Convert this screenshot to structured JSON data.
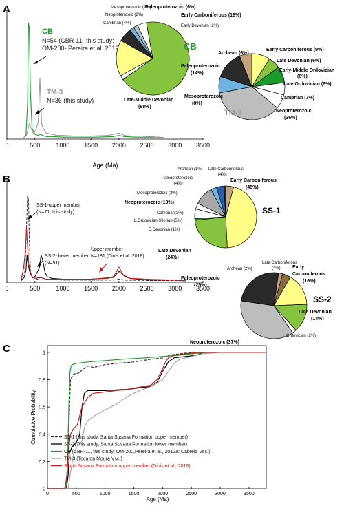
{
  "panel_labels": {
    "A": "A",
    "B": "B",
    "C": "C"
  },
  "chart_data": [
    {
      "panel": "A",
      "type": "line",
      "xlabel": "Age (Ma)",
      "xlim": [
        0,
        3500
      ],
      "ticks": [
        "0",
        "500",
        "1000",
        "1500",
        "2000",
        "2500",
        "3000",
        "3500"
      ],
      "tick_values": [
        0,
        500,
        1000,
        1500,
        2000,
        2500,
        3000,
        3500
      ],
      "series": [
        {
          "name": "CB",
          "color": "#1a9b2c",
          "x": [
            300,
            340,
            370,
            385,
            400,
            420,
            450,
            500,
            560,
            600,
            640,
            700,
            800,
            1000,
            1300,
            1600,
            1900,
            2000,
            2100,
            2300,
            2500,
            2700,
            2800
          ],
          "y": [
            0,
            2,
            30,
            100,
            95,
            40,
            8,
            3,
            2,
            3,
            2,
            1,
            1,
            0.5,
            0.5,
            0.5,
            1,
            2,
            1,
            0.5,
            0.5,
            0.5,
            0
          ]
        },
        {
          "name": "TM-3",
          "color": "#9a9a9a",
          "x": [
            300,
            350,
            400,
            450,
            480,
            520,
            560,
            590,
            620,
            650,
            700,
            800,
            900,
            1000,
            1200,
            1500,
            1800,
            2000,
            2100,
            2200,
            2400,
            2600,
            2750
          ],
          "y": [
            0,
            2,
            12,
            6,
            3,
            7,
            14,
            52,
            12,
            8,
            4,
            3,
            2,
            2,
            1.5,
            1.5,
            2,
            4,
            2,
            1.5,
            1.5,
            1,
            0
          ]
        }
      ],
      "annotations": {
        "cb_title": "CB",
        "cb_note1": "N=54 (CBR-11- this study;",
        "cb_note2": "OM-200- Pereira et al. 2012a)",
        "tm_title": "TM-3",
        "tm_note": "N=36 (this study)"
      }
    },
    {
      "panel": "A",
      "type": "pie",
      "title": "CB",
      "title_color": "#1a9b2c",
      "slices": [
        {
          "label": "Late-Middle Devonian (68%)",
          "value": 68,
          "color": "#86c440"
        },
        {
          "label": "Early Devonian (2%)",
          "value": 2,
          "color": "#ffffff"
        },
        {
          "label": "Early Carboniferous (16%)",
          "value": 16,
          "color": "#ffff88"
        },
        {
          "label": "Paleoproterozoic (6%)",
          "value": 6,
          "color": "#2a2a2a"
        },
        {
          "label": "Mesoproterozoic (2%)",
          "value": 2,
          "color": "#6fb3e0"
        },
        {
          "label": "Neoproterozoic (2%)",
          "value": 2,
          "color": "#bdbdbd"
        },
        {
          "label": "Cambrian (4%)",
          "value": 4,
          "color": "#ffffff"
        }
      ],
      "labels": {
        "meso": "Mesoproterozoic (2%)",
        "neo": "Neoproterozoic (2%)",
        "cambrian": "Cambrian (4%)",
        "paleo": "Paleoproterozoic (6%)",
        "early_carb": "Early Carboniferous (16%)",
        "early_dev": "Early Devonian (2%)",
        "late_mid_dev_1": "Late-Middle Devonian",
        "late_mid_dev_2": "(68%)"
      }
    },
    {
      "panel": "A",
      "type": "pie",
      "title": "TM-3",
      "title_color": "#9a9a9a",
      "slices": [
        {
          "label": "Early Carboniferous (9%)",
          "value": 9,
          "color": "#ffff88"
        },
        {
          "label": "Late Devonian (6%)",
          "value": 6,
          "color": "#86c440"
        },
        {
          "label": "Early-Middle Ordovician (8%)",
          "value": 8,
          "color": "#1a9b2c"
        },
        {
          "label": "Late Ordovician (6%)",
          "value": 6,
          "color": "#ffffff"
        },
        {
          "label": "Cambrian (7%)",
          "value": 7,
          "color": "#ffffff"
        },
        {
          "label": "Neoproterozoic (36%)",
          "value": 36,
          "color": "#bdbdbd"
        },
        {
          "label": "Mesoproterozoic (8%)",
          "value": 8,
          "color": "#6fb3e0"
        },
        {
          "label": "Paleoproterozoic (14%)",
          "value": 14,
          "color": "#2a2a2a"
        },
        {
          "label": "Archean (6%)",
          "value": 6,
          "color": "#c4a27a"
        }
      ],
      "labels": {
        "archean": "Archean (6%)",
        "early_carb": "Early Carboniferous (9%)",
        "late_dev": "Late Devonian (6%)",
        "em_ord_1": "Early-Middle Ordovician",
        "em_ord_2": "(8%)",
        "late_ord": "Late Ordovician (6%)",
        "cambrian": "Cambrian (7%)",
        "neo_1": "Neoproterozoic",
        "neo_2": "(36%)",
        "paleo_1": "Paleoproterozoic",
        "paleo_2": "(14%)",
        "meso_1": "Mesoproterozoic",
        "meso_2": "(8%)"
      }
    },
    {
      "panel": "B",
      "type": "line",
      "xlim": [
        0,
        3500
      ],
      "ticks": [
        "0",
        "500",
        "1000",
        "1500",
        "2000",
        "2500",
        "3000",
        "3500"
      ],
      "tick_values": [
        0,
        500,
        1000,
        1500,
        2000,
        2500,
        3000,
        3500
      ],
      "series": [
        {
          "name": "SS-1-upper member",
          "color": "#333333",
          "style": "dashed",
          "x": [
            250,
            320,
            350,
            370,
            385,
            400,
            420,
            450,
            500,
            550,
            600,
            650,
            700,
            1000,
            1500,
            1900,
            2000,
            2100,
            2500,
            3000,
            3200
          ],
          "y": [
            0,
            10,
            60,
            100,
            95,
            50,
            10,
            4,
            3,
            2,
            4,
            3,
            2,
            1,
            1,
            1,
            2,
            1,
            0.5,
            0.5,
            0
          ]
        },
        {
          "name": "SS-2- lower member",
          "color": "#111111",
          "style": "solid",
          "x": [
            250,
            310,
            340,
            360,
            380,
            420,
            460,
            500,
            540,
            580,
            610,
            640,
            680,
            720,
            800,
            1000,
            1500,
            1900,
            2000,
            2100,
            2200,
            2500,
            3000,
            3200
          ],
          "y": [
            0,
            4,
            12,
            30,
            18,
            8,
            4,
            5,
            10,
            15,
            30,
            24,
            10,
            5,
            3,
            2,
            2,
            4,
            11,
            6,
            3,
            1,
            1,
            0
          ]
        },
        {
          "name": "Upper member",
          "color": "#c41a1a",
          "style": "solid",
          "x": [
            250,
            300,
            330,
            350,
            370,
            390,
            420,
            450,
            500,
            600,
            650,
            700,
            800,
            1000,
            1500,
            1800,
            1900,
            1950,
            2000,
            2050,
            2100,
            2200,
            2500,
            3000,
            3200
          ],
          "y": [
            0,
            15,
            35,
            62,
            40,
            20,
            10,
            5,
            3,
            4,
            3,
            2,
            2,
            2,
            2,
            3,
            5,
            10,
            16,
            10,
            5,
            3,
            2,
            1,
            0
          ]
        }
      ],
      "annotations": {
        "ss1_1": "SS-1-upper member",
        "ss1_2": "(N=71; this study)",
        "ss2_1": "SS-2- lower member",
        "ss2_2": "(N=51)",
        "up_1": "Upper member",
        "up_2": "N=181;(Dinis et al. 2018)"
      }
    },
    {
      "panel": "B",
      "type": "pie",
      "title": "SS-1",
      "slices": [
        {
          "label": "Early Carboniferous (45%)",
          "value": 45,
          "color": "#ffff88"
        },
        {
          "label": "Late Devonian (24%)",
          "value": 24,
          "color": "#86c440"
        },
        {
          "label": "E.Devonian (1%)",
          "value": 1,
          "color": "#1a9b2c"
        },
        {
          "label": "L.Ordovician-Silurian (5%)",
          "value": 5,
          "color": "#ffffff"
        },
        {
          "label": "Cambrian(3%)",
          "value": 3,
          "color": "#ffffff"
        },
        {
          "label": "Neoproterozoic (10%)",
          "value": 10,
          "color": "#a8a8a8"
        },
        {
          "label": "Mesoproterozoic (3%)",
          "value": 3,
          "color": "#6fb3e0"
        },
        {
          "label": "Paleoproterozoic (4%)",
          "value": 4,
          "color": "#2a5ea8"
        },
        {
          "label": "Archean (1%)",
          "value": 1,
          "color": "#2a2a2a"
        },
        {
          "label": "Late Carboniferous (4%)",
          "value": 4,
          "color": "#c4a27a"
        }
      ],
      "labels": {
        "archean": "Archean (1%)",
        "late_carb_1": "Late Carboniferous",
        "late_carb_2": "(4%)",
        "paleo_1": "Paleoproterozoic",
        "paleo_2": "(4%)",
        "meso": "Mesoproterozoic (3%)",
        "neo": "Neoproterozoic (10%)",
        "early_carb_1": "Early Carboniferous",
        "early_carb_2": "(45%)",
        "cambrian": "Cambrian(3%)",
        "lord": "L.Ordovician-Silurian (5%)",
        "edev": "E.Devonian (1%)",
        "late_dev_1": "Late Devonian",
        "late_dev_2": "(24%)"
      }
    },
    {
      "panel": "B",
      "type": "pie",
      "title": "SS-2",
      "slices": [
        {
          "label": "Early Carboniferous (16%)",
          "value": 16,
          "color": "#ffff88"
        },
        {
          "label": "Late Devonian (14%)",
          "value": 14,
          "color": "#86c440"
        },
        {
          "label": "L.Ordovician (2%)",
          "value": 2,
          "color": "#ffffff"
        },
        {
          "label": "Neoproterozoic (37%)",
          "value": 37,
          "color": "#bdbdbd"
        },
        {
          "label": "Paleoproterozoic (25%)",
          "value": 25,
          "color": "#2a2a2a"
        },
        {
          "label": "Archean (2%)",
          "value": 2,
          "color": "#c4a27a"
        },
        {
          "label": "Late Carboniferous (4%)",
          "value": 4,
          "color": "#8a6a44"
        }
      ],
      "labels": {
        "late_carb_1": "Late Carboniferous",
        "late_carb_2": "(4%)",
        "archean": "Archean (2%)",
        "early_carb_1": "Early",
        "early_carb_2": "Carboniferous",
        "early_carb_3": "(16%)",
        "paleo_1": "Paleoproterozoic",
        "paleo_2": "(25%)",
        "late_dev_1": "Late Devonian",
        "late_dev_2": "(14%)",
        "lord": "L.Ordovician (2%)",
        "neo": "Neoproterozoic (37%)"
      }
    },
    {
      "panel": "C",
      "type": "line",
      "xlabel": "Age (Ma)",
      "ylabel": "Cumulative Probability",
      "xlim": [
        0,
        3800
      ],
      "ylim": [
        0,
        1.05
      ],
      "xticks": [
        "0",
        "500",
        "1000",
        "1500",
        "2000",
        "2500",
        "3000",
        "3500"
      ],
      "xtick_values": [
        0,
        500,
        1000,
        1500,
        2000,
        2500,
        3000,
        3500
      ],
      "yticks": [
        "0",
        "0,2",
        "0,4",
        "0,6",
        "0,8",
        "1"
      ],
      "ytick_values": [
        0,
        0.2,
        0.4,
        0.6,
        0.8,
        1.0
      ],
      "series": [
        {
          "name": "SS-1 (this study, Santa Susana Formation upper member)",
          "color": "#333333",
          "style": "dashed",
          "x": [
            0,
            300,
            340,
            360,
            380,
            400,
            450,
            550,
            600,
            700,
            800,
            900,
            1000,
            1200,
            1500,
            1800,
            2000,
            2100,
            2300,
            2500,
            2800,
            3000,
            3800
          ],
          "y": [
            0,
            0,
            0.1,
            0.3,
            0.55,
            0.8,
            0.84,
            0.85,
            0.87,
            0.9,
            0.89,
            0.9,
            0.91,
            0.92,
            0.93,
            0.95,
            0.96,
            0.98,
            0.99,
            1,
            1,
            1,
            1
          ]
        },
        {
          "name": "SS-2(This study, Santa Susana Formation lower member)",
          "color": "#000000",
          "style": "solid",
          "x": [
            0,
            330,
            360,
            380,
            420,
            500,
            560,
            600,
            640,
            700,
            800,
            1000,
            1400,
            1800,
            1900,
            2000,
            2100,
            2200,
            2400,
            2600,
            2700,
            3000,
            3800
          ],
          "y": [
            0,
            0,
            0.1,
            0.26,
            0.3,
            0.34,
            0.4,
            0.6,
            0.7,
            0.72,
            0.72,
            0.72,
            0.73,
            0.75,
            0.78,
            0.86,
            0.93,
            0.96,
            0.97,
            0.98,
            1,
            1,
            1
          ]
        },
        {
          "name": "CB (CBR-11, this study; OM-200,Pereira et al., 2012a; Cabrela Vsc.)",
          "color": "#1a9b2c",
          "style": "solid",
          "x": [
            0,
            320,
            350,
            370,
            390,
            410,
            430,
            500,
            700,
            1000,
            1300,
            1700,
            2000,
            2300,
            2500,
            2800,
            3800
          ],
          "y": [
            0,
            0,
            0.2,
            0.6,
            0.85,
            0.9,
            0.91,
            0.92,
            0.93,
            0.94,
            0.95,
            0.96,
            0.97,
            0.98,
            0.99,
            1,
            1
          ]
        },
        {
          "name": "TM-3 (Toca da Moura Vsc.)",
          "color": "#a6a6a6",
          "style": "solid",
          "x": [
            0,
            360,
            400,
            450,
            500,
            600,
            640,
            700,
            800,
            1000,
            1200,
            1400,
            1600,
            1800,
            2000,
            2100,
            2200,
            2300,
            2500,
            2700,
            3000,
            3800
          ],
          "y": [
            0,
            0,
            0.12,
            0.25,
            0.3,
            0.35,
            0.45,
            0.5,
            0.53,
            0.58,
            0.62,
            0.68,
            0.72,
            0.75,
            0.8,
            0.86,
            0.92,
            0.95,
            0.97,
            0.99,
            1,
            1
          ]
        },
        {
          "name": "Santa Susana Formation upper member (Dinis et al., 2018)",
          "color": "#c41a1a",
          "style": "solid",
          "x": [
            0,
            300,
            340,
            360,
            380,
            400,
            450,
            520,
            600,
            700,
            800,
            1000,
            1400,
            1800,
            1900,
            2000,
            2050,
            2100,
            2200,
            2400,
            2600,
            3000,
            3800
          ],
          "y": [
            0,
            0,
            0.1,
            0.27,
            0.33,
            0.4,
            0.44,
            0.47,
            0.6,
            0.67,
            0.7,
            0.71,
            0.73,
            0.76,
            0.8,
            0.88,
            0.93,
            0.96,
            0.98,
            0.99,
            1,
            1,
            1
          ]
        }
      ]
    }
  ]
}
